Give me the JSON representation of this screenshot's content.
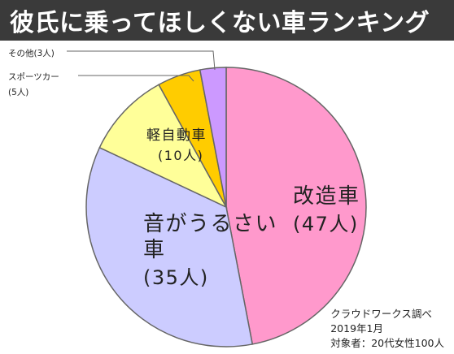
{
  "header": {
    "title": "彼氏に乗ってほしくない車ランキング"
  },
  "chart_data": {
    "type": "pie",
    "title": "彼氏に乗ってほしくない車ランキング",
    "start_angle_deg": -90,
    "direction": "clockwise",
    "slices": [
      {
        "label": "改造車",
        "count_label": "(47人)",
        "value": 47,
        "color": "#ff99cc",
        "label_pos": "inside"
      },
      {
        "label": "音がうるさい車",
        "count_label": "(35人)",
        "value": 35,
        "color": "#ccccff",
        "label_pos": "inside"
      },
      {
        "label": "軽自動車",
        "count_label": "(10人)",
        "value": 10,
        "color": "#ffff99",
        "label_pos": "inside"
      },
      {
        "label": "スポーツカー",
        "count_label": "(5人)",
        "value": 5,
        "color": "#ffcc00",
        "label_pos": "outside"
      },
      {
        "label": "その他",
        "count_label": "(3人)",
        "value": 3,
        "color": "#cc99ff",
        "label_pos": "outside"
      }
    ],
    "legend": "none",
    "grid": false
  },
  "source": {
    "line1": "クラウドワークス調べ",
    "line2": "2019年1月",
    "line3": "対象者：20代女性100人"
  }
}
